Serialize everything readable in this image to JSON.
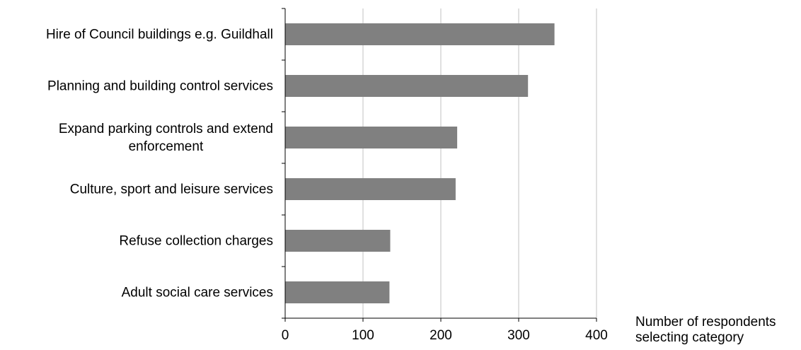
{
  "chart_data": {
    "type": "bar",
    "orientation": "horizontal",
    "categories": [
      [
        "Hire of Council buildings e.g. Guildhall"
      ],
      [
        "Planning and building control services"
      ],
      [
        "Expand parking controls and extend",
        "enforcement"
      ],
      [
        "Culture, sport and leisure services"
      ],
      [
        "Refuse collection charges"
      ],
      [
        "Adult social care services"
      ]
    ],
    "values": [
      346,
      312,
      221,
      219,
      135,
      134
    ],
    "xlabel": [
      "Number of respondents",
      "selecting category"
    ],
    "xlim": [
      0,
      400
    ],
    "xticks": [
      0,
      100,
      200,
      300,
      400
    ],
    "grid": "vertical",
    "legend": "none",
    "colors": {
      "bar": "#808080",
      "grid": "#c0c0c0",
      "axis": "#000000",
      "text": "#000000"
    }
  }
}
